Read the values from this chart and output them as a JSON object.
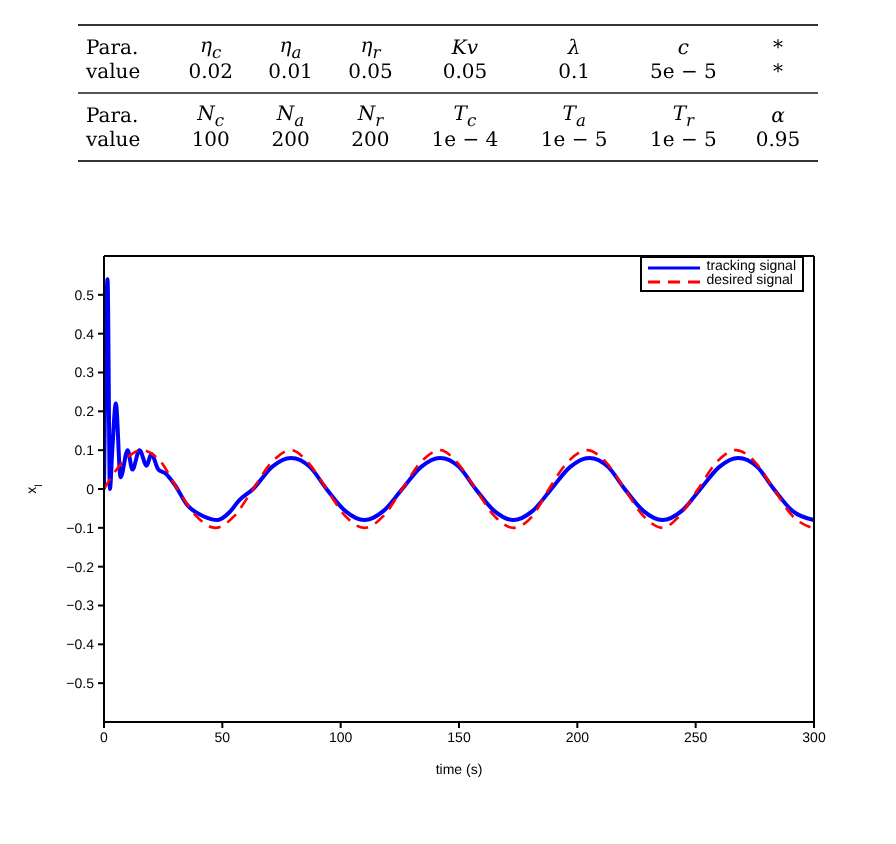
{
  "chart_data": {
    "type": "line",
    "annotations": [
      "Para.",
      "η$_{c}$",
      "η$_{a}$",
      "η$_{r}$",
      "Kv",
      "λ",
      "c",
      "*",
      "value",
      "0.02",
      "0.01",
      "0.05",
      "0.05",
      "0.1",
      "5e − 5",
      "*",
      "Para.",
      "N$_{c}$",
      "N$_{a}$",
      "N$_{r}$",
      "T$_{c}$",
      "T$_{a}$",
      "T$_{r}$",
      "α",
      "value",
      "100",
      "200",
      "200",
      "1e − 4",
      "1e − 5",
      "1e − 5",
      "0.95"
    ],
    "xlabel": "time (s)",
    "ylabel": "x$_{l}$",
    "xlim": [
      0,
      300
    ],
    "xticks": [
      0,
      50,
      100,
      150,
      200,
      250,
      300
    ],
    "ylim": [
      -0.6,
      0.6
    ],
    "yticks": [
      {
        "value": -0.5,
        "label": "−0.5"
      },
      {
        "value": -0.4,
        "label": "−0.4"
      },
      {
        "value": -0.3,
        "label": "−0.3"
      },
      {
        "value": -0.2,
        "label": "−0.2"
      },
      {
        "value": -0.1,
        "label": "−0.1"
      },
      0,
      0.1,
      0.2,
      0.3,
      0.4,
      0.5
    ],
    "legend": "top right",
    "series": [
      {
        "name": "tracking signal",
        "color": "#0000ff",
        "line_style": "solid",
        "x": [
          0,
          1.5,
          2.5,
          3.5,
          5,
          7,
          10,
          12,
          15,
          18,
          20,
          23,
          26,
          30,
          35,
          42,
          48,
          53,
          57,
          63,
          71,
          79,
          87,
          94,
          102,
          110,
          118,
          126,
          134,
          142,
          150,
          157,
          165,
          173,
          181,
          189,
          197,
          205,
          213,
          220,
          228,
          236,
          244,
          252,
          260,
          268,
          276,
          283,
          291,
          300
        ],
        "values": [
          0,
          0.54,
          0,
          0.1,
          0.22,
          0.03,
          0.1,
          0.05,
          0.1,
          0.06,
          0.09,
          0.05,
          0.04,
          0.01,
          -0.04,
          -0.07,
          -0.08,
          -0.06,
          -0.03,
          0,
          0.057,
          0.08,
          0.057,
          0,
          -0.057,
          -0.08,
          -0.057,
          0,
          0.057,
          0.08,
          0.057,
          0,
          -0.057,
          -0.08,
          -0.057,
          0,
          0.057,
          0.08,
          0.057,
          0,
          -0.057,
          -0.08,
          -0.057,
          0,
          0.057,
          0.08,
          0.057,
          0,
          -0.057,
          -0.08
        ]
      },
      {
        "name": "desired signal",
        "color": "#ff0000",
        "line_style": "dashed",
        "x": [
          0,
          8,
          16,
          24,
          31,
          39,
          47,
          55,
          63,
          71,
          79,
          86,
          94,
          102,
          110,
          118,
          126,
          134,
          142,
          149,
          157,
          165,
          173,
          181,
          188,
          196,
          204,
          212,
          220,
          228,
          236,
          243,
          251,
          259,
          267,
          275,
          283,
          291,
          299
        ],
        "values": [
          0,
          0.07,
          0.1,
          0.07,
          0,
          -0.07,
          -0.1,
          -0.07,
          0,
          0.07,
          0.1,
          0.07,
          0,
          -0.07,
          -0.1,
          -0.07,
          0,
          0.07,
          0.1,
          0.07,
          0,
          -0.07,
          -0.1,
          -0.07,
          0,
          0.07,
          0.1,
          0.07,
          0,
          -0.07,
          -0.1,
          -0.07,
          0,
          0.07,
          0.1,
          0.07,
          0,
          -0.07,
          -0.1
        ]
      }
    ]
  }
}
